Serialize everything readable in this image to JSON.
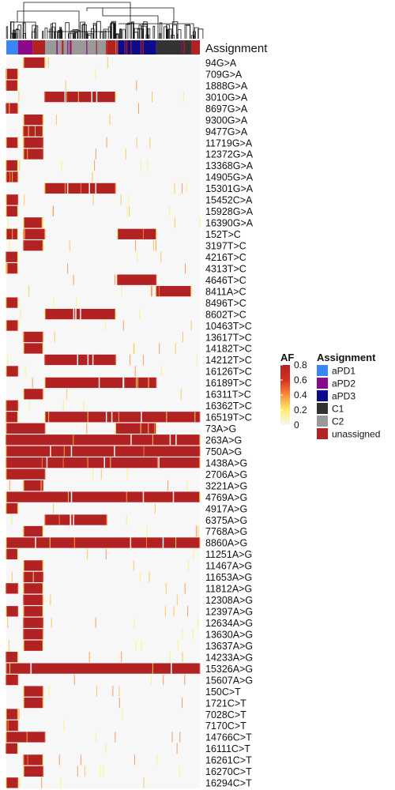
{
  "chart_data": {
    "type": "heatmap",
    "annotation_title": "Assignment",
    "af_legend": {
      "title": "AF",
      "ticks": [
        0.8,
        0.6,
        0.4,
        0.2,
        0
      ],
      "tick_labels": [
        "0.8",
        "0.6",
        "0.4",
        "0.2",
        "0"
      ],
      "range": [
        0,
        0.8
      ],
      "colors": [
        "#f7f7f7",
        "#ffed6f",
        "#fd8d3c",
        "#d7301f",
        "#b22222"
      ]
    },
    "assignment_legend": {
      "title": "Assignment",
      "items": [
        {
          "label": "aPD1",
          "color": "#3a86f5"
        },
        {
          "label": "aPD2",
          "color": "#8b0a8b"
        },
        {
          "label": "aPD3",
          "color": "#0b0b8c"
        },
        {
          "label": "C1",
          "color": "#333333"
        },
        {
          "label": "C2",
          "color": "#999999"
        },
        {
          "label": "unassigned",
          "color": "#b22222"
        }
      ]
    },
    "column_groups": [
      {
        "group": "aPD1",
        "span": [
          0,
          0.06
        ]
      },
      {
        "group": "aPD2",
        "span": [
          0.06,
          0.135
        ]
      },
      {
        "group": "unassigned",
        "span": [
          0.135,
          0.2
        ]
      },
      {
        "group": "C2",
        "span": [
          0.2,
          0.52
        ]
      },
      {
        "group": "unassigned",
        "span": [
          0.52,
          0.565
        ]
      },
      {
        "group": "C2",
        "span": [
          0.565,
          0.575
        ]
      },
      {
        "group": "aPD3",
        "span": [
          0.575,
          0.775
        ]
      },
      {
        "group": "C1",
        "span": [
          0.775,
          0.955
        ]
      },
      {
        "group": "unassigned",
        "span": [
          0.955,
          1.0
        ]
      }
    ],
    "variants": [
      {
        "label": "94G>A",
        "high": [
          [
            0.09,
            0.2
          ]
        ]
      },
      {
        "label": "709G>A",
        "high": [
          [
            0.0,
            0.06
          ]
        ]
      },
      {
        "label": "1888G>A",
        "high": [
          [
            0.0,
            0.06
          ]
        ]
      },
      {
        "label": "3010G>A",
        "high": [
          [
            0.2,
            0.565
          ]
        ]
      },
      {
        "label": "8697G>A",
        "high": [
          [
            0.0,
            0.06
          ]
        ]
      },
      {
        "label": "9300G>A",
        "high": [
          [
            0.09,
            0.19
          ]
        ]
      },
      {
        "label": "9477G>A",
        "high": [
          [
            0.09,
            0.19
          ]
        ]
      },
      {
        "label": "11719G>A",
        "high": [
          [
            0.0,
            0.06
          ],
          [
            0.09,
            0.19
          ]
        ]
      },
      {
        "label": "12372G>A",
        "high": [
          [
            0.09,
            0.19
          ]
        ]
      },
      {
        "label": "13368G>A",
        "high": [
          [
            0.0,
            0.06
          ]
        ]
      },
      {
        "label": "14905G>A",
        "high": [
          [
            0.0,
            0.06
          ]
        ]
      },
      {
        "label": "15301G>A",
        "high": [
          [
            0.2,
            0.565
          ]
        ]
      },
      {
        "label": "15452C>A",
        "high": [
          [
            0.0,
            0.06
          ]
        ]
      },
      {
        "label": "15928G>A",
        "high": [
          [
            0.0,
            0.06
          ]
        ]
      },
      {
        "label": "16390G>A",
        "high": [
          [
            0.09,
            0.19
          ]
        ]
      },
      {
        "label": "152T>C",
        "high": [
          [
            0.0,
            0.06
          ],
          [
            0.09,
            0.2
          ],
          [
            0.575,
            0.775
          ]
        ]
      },
      {
        "label": "3197T>C",
        "high": [
          [
            0.09,
            0.19
          ]
        ]
      },
      {
        "label": "4216T>C",
        "high": [
          [
            0.0,
            0.06
          ]
        ]
      },
      {
        "label": "4313T>C",
        "high": [
          [
            0.0,
            0.06
          ]
        ]
      },
      {
        "label": "4646T>C",
        "high": [
          [
            0.575,
            0.775
          ]
        ]
      },
      {
        "label": "8411A>C",
        "high": [
          [
            0.775,
            0.955
          ]
        ]
      },
      {
        "label": "8496T>C",
        "high": [
          [
            0.0,
            0.06
          ]
        ]
      },
      {
        "label": "8602T>C",
        "high": [
          [
            0.2,
            0.565
          ]
        ]
      },
      {
        "label": "10463T>C",
        "high": [
          [
            0.0,
            0.06
          ]
        ]
      },
      {
        "label": "13617T>C",
        "high": [
          [
            0.09,
            0.19
          ]
        ]
      },
      {
        "label": "14182T>C",
        "high": [
          [
            0.09,
            0.19
          ]
        ]
      },
      {
        "label": "14212T>C",
        "high": [
          [
            0.2,
            0.565
          ]
        ]
      },
      {
        "label": "16126T>C",
        "high": [
          [
            0.0,
            0.06
          ]
        ]
      },
      {
        "label": "16189T>C",
        "high": [
          [
            0.2,
            0.775
          ]
        ]
      },
      {
        "label": "16311T>C",
        "high": [
          [
            0.09,
            0.19
          ]
        ]
      },
      {
        "label": "16362T>C",
        "high": [
          [
            0.0,
            0.06
          ]
        ]
      },
      {
        "label": "16519T>C",
        "high": [
          [
            0.0,
            0.06
          ],
          [
            0.2,
            1.0
          ]
        ]
      },
      {
        "label": "73A>G",
        "high": [
          [
            0.0,
            0.2
          ],
          [
            0.565,
            0.775
          ]
        ]
      },
      {
        "label": "263A>G",
        "high": [
          [
            0.0,
            1.0
          ]
        ]
      },
      {
        "label": "750A>G",
        "high": [
          [
            0.0,
            1.0
          ]
        ]
      },
      {
        "label": "1438A>G",
        "high": [
          [
            0.0,
            1.0
          ]
        ]
      },
      {
        "label": "2706A>G",
        "high": [
          [
            0.0,
            0.2
          ]
        ]
      },
      {
        "label": "3221A>G",
        "high": [
          [
            0.09,
            0.19
          ]
        ]
      },
      {
        "label": "4769A>G",
        "high": [
          [
            0.0,
            1.0
          ]
        ]
      },
      {
        "label": "4917A>G",
        "high": [
          [
            0.0,
            0.06
          ]
        ]
      },
      {
        "label": "6375A>G",
        "high": [
          [
            0.2,
            0.52
          ]
        ]
      },
      {
        "label": "7768A>G",
        "high": [
          [
            0.09,
            0.19
          ]
        ]
      },
      {
        "label": "8860A>G",
        "high": [
          [
            0.0,
            1.0
          ]
        ]
      },
      {
        "label": "11251A>G",
        "high": [
          [
            0.0,
            0.06
          ]
        ]
      },
      {
        "label": "11467A>G",
        "high": [
          [
            0.09,
            0.19
          ]
        ]
      },
      {
        "label": "11653A>G",
        "high": [
          [
            0.09,
            0.19
          ]
        ]
      },
      {
        "label": "11812A>G",
        "high": [
          [
            0.0,
            0.06
          ],
          [
            0.09,
            0.19
          ]
        ]
      },
      {
        "label": "12308A>G",
        "high": [
          [
            0.09,
            0.19
          ]
        ]
      },
      {
        "label": "12397A>G",
        "high": [
          [
            0.0,
            0.06
          ],
          [
            0.09,
            0.19
          ]
        ]
      },
      {
        "label": "12634A>G",
        "high": [
          [
            0.09,
            0.19
          ]
        ]
      },
      {
        "label": "13630A>G",
        "high": [
          [
            0.09,
            0.19
          ]
        ]
      },
      {
        "label": "13637A>G",
        "high": [
          [
            0.09,
            0.19
          ]
        ]
      },
      {
        "label": "14233A>G",
        "high": [
          [
            0.0,
            0.06
          ]
        ]
      },
      {
        "label": "15326A>G",
        "high": [
          [
            0.0,
            1.0
          ]
        ]
      },
      {
        "label": "15607A>G",
        "high": [
          [
            0.0,
            0.06
          ]
        ]
      },
      {
        "label": "150C>T",
        "high": [
          [
            0.09,
            0.19
          ]
        ]
      },
      {
        "label": "1721C>T",
        "high": [
          [
            0.09,
            0.19
          ]
        ]
      },
      {
        "label": "7028C>T",
        "high": [
          [
            0.0,
            0.06
          ]
        ]
      },
      {
        "label": "7170C>T",
        "high": [
          [
            0.0,
            0.06
          ]
        ]
      },
      {
        "label": "14766C>T",
        "high": [
          [
            0.0,
            0.2
          ]
        ]
      },
      {
        "label": "16111C>T",
        "high": [
          [
            0.0,
            0.06
          ]
        ]
      },
      {
        "label": "16261C>T",
        "high": [
          [
            0.09,
            0.19
          ]
        ]
      },
      {
        "label": "16270C>T",
        "high": [
          [
            0.09,
            0.19
          ]
        ]
      },
      {
        "label": "16294C>T",
        "high": [
          [
            0.0,
            0.06
          ]
        ]
      }
    ]
  }
}
